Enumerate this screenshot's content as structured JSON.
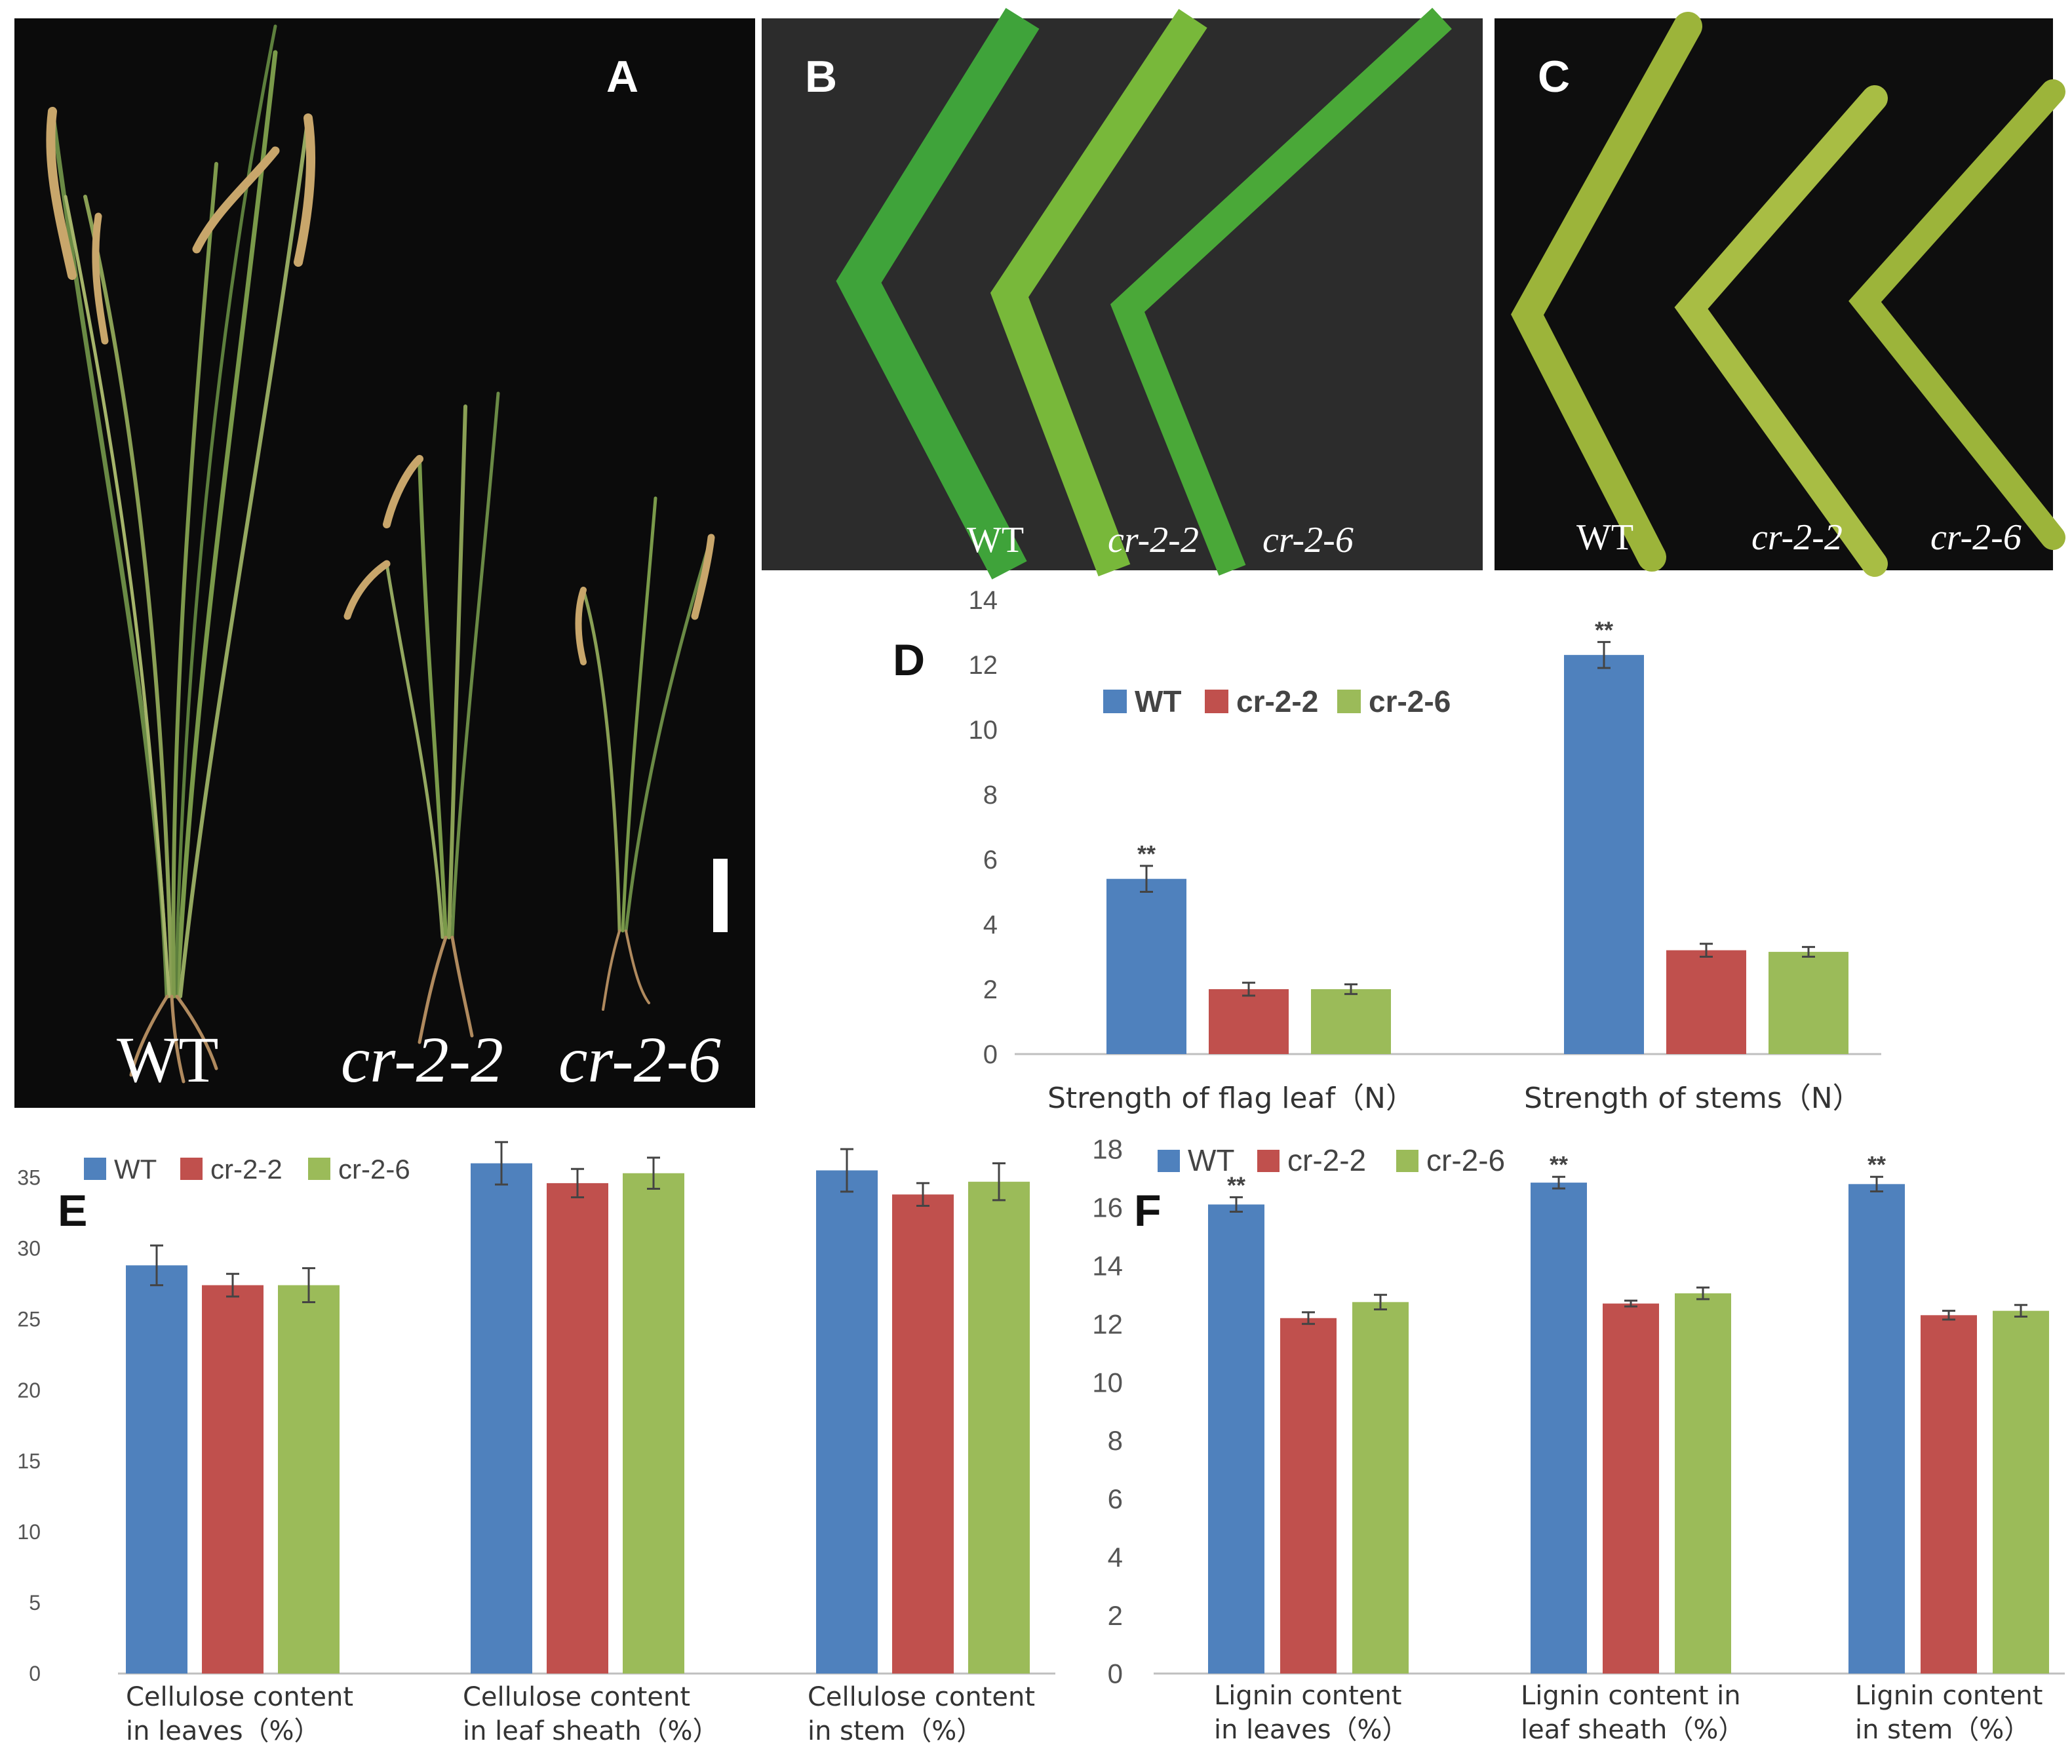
{
  "colors": {
    "wt": "#4f81bd",
    "cr22": "#c0504d",
    "cr26": "#9bbb59",
    "photo_bg": "#0b0b0b",
    "axis": "#bfbfbf",
    "error_bar": "#444444"
  },
  "photos": {
    "A": {
      "letter": "A",
      "labels": [
        "WT",
        "cr-2-2",
        "cr-2-6"
      ]
    },
    "B": {
      "letter": "B",
      "labels": [
        "WT",
        "cr-2-2",
        "cr-2-6"
      ]
    },
    "C": {
      "letter": "C",
      "labels": [
        "WT",
        "cr-2-2",
        "cr-2-6"
      ]
    }
  },
  "chart_data": [
    {
      "panel": "D",
      "type": "bar",
      "categories": [
        "Strength of flag leaf（N）",
        "Strength of stems（N）"
      ],
      "series": [
        {
          "name": "WT",
          "values": [
            5.4,
            12.3
          ],
          "errors": [
            0.4,
            0.4
          ]
        },
        {
          "name": "cr-2-2",
          "values": [
            2.0,
            3.2
          ],
          "errors": [
            0.2,
            0.2
          ]
        },
        {
          "name": "cr-2-6",
          "values": [
            2.0,
            3.15
          ],
          "errors": [
            0.15,
            0.15
          ]
        }
      ],
      "annotations": [
        "**",
        "**"
      ],
      "yticks": [
        0,
        2,
        4,
        6,
        8,
        10,
        12,
        14
      ],
      "ylim": [
        0,
        14
      ],
      "legend": "top-left",
      "grid": false
    },
    {
      "panel": "E",
      "type": "bar",
      "categories": [
        "Cellulose content in leaves（%）",
        "Cellulose content in leaf sheath（%）",
        "Cellulose content in stem（%）"
      ],
      "series": [
        {
          "name": "WT",
          "values": [
            28.8,
            36.0,
            35.5
          ],
          "errors": [
            1.4,
            1.5,
            1.5
          ]
        },
        {
          "name": "cr-2-2",
          "values": [
            27.4,
            34.6,
            33.8
          ],
          "errors": [
            0.8,
            1.0,
            0.8
          ]
        },
        {
          "name": "cr-2-6",
          "values": [
            27.4,
            35.3,
            34.7
          ],
          "errors": [
            1.2,
            1.1,
            1.3
          ]
        }
      ],
      "yticks": [
        0,
        5,
        10,
        15,
        20,
        25,
        30,
        35
      ],
      "ylim": [
        0,
        37
      ],
      "legend": "top-left",
      "grid": false
    },
    {
      "panel": "F",
      "type": "bar",
      "categories": [
        "Lignin content in leaves（%）",
        "Lignin content in leaf sheath（%）",
        "Lignin content in stem（%）"
      ],
      "series": [
        {
          "name": "WT",
          "values": [
            16.1,
            16.85,
            16.8
          ],
          "errors": [
            0.25,
            0.2,
            0.25
          ]
        },
        {
          "name": "cr-2-2",
          "values": [
            12.2,
            12.7,
            12.3
          ],
          "errors": [
            0.2,
            0.1,
            0.15
          ]
        },
        {
          "name": "cr-2-6",
          "values": [
            12.75,
            13.05,
            12.45
          ],
          "errors": [
            0.25,
            0.2,
            0.2
          ]
        }
      ],
      "annotations": [
        "**",
        "**",
        "**"
      ],
      "yticks": [
        0,
        2,
        4,
        6,
        8,
        10,
        12,
        14,
        16,
        18
      ],
      "ylim": [
        0,
        18
      ],
      "legend": "top-left",
      "grid": false
    }
  ]
}
